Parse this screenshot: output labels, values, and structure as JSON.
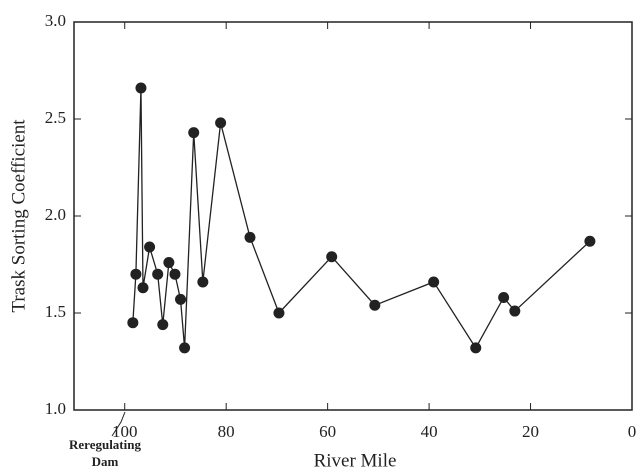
{
  "chart_data": {
    "type": "line",
    "x_label": "River Mile",
    "y_label": "Trask Sorting Coefficient",
    "annotation": "Reregulating Dam",
    "x": [
      98.4,
      97.8,
      96.8,
      96.4,
      95.1,
      93.5,
      92.5,
      91.3,
      90.1,
      89.0,
      88.2,
      86.4,
      84.6,
      81.1,
      75.3,
      69.6,
      59.2,
      50.7,
      39.1,
      30.8,
      25.3,
      23.1,
      8.3
    ],
    "values": [
      1.45,
      1.7,
      2.66,
      1.63,
      1.84,
      1.7,
      1.44,
      1.76,
      1.7,
      1.57,
      1.32,
      2.43,
      1.66,
      2.48,
      1.89,
      1.5,
      1.79,
      1.54,
      1.66,
      1.32,
      1.58,
      1.51,
      1.87
    ],
    "color": "#222222",
    "xlim": [
      110,
      0
    ],
    "xticks": [
      100,
      80,
      60,
      40,
      20,
      0
    ],
    "ylim": [
      1,
      3
    ],
    "yticks": [
      {
        "value": 1,
        "label": "1.0"
      },
      1.5,
      {
        "value": 2,
        "label": "2.0"
      },
      2.5,
      {
        "value": 3,
        "label": "3.0"
      }
    ]
  }
}
